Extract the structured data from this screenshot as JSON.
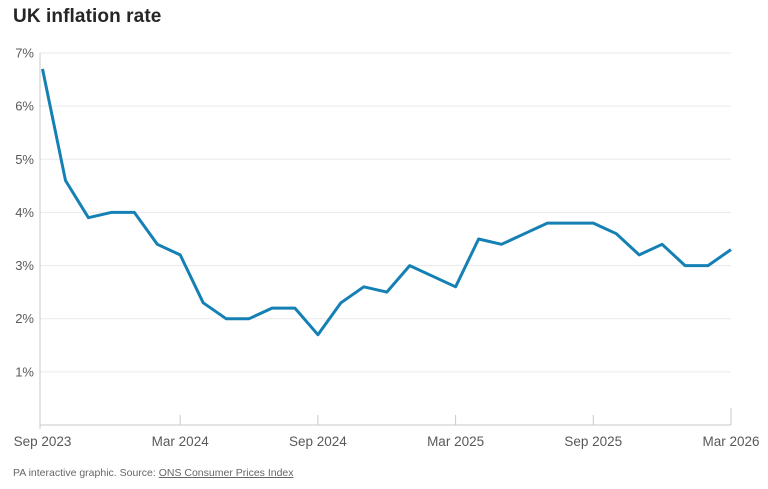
{
  "title": "UK inflation rate",
  "footer": {
    "prefix": "PA interactive graphic. Source: ",
    "link": "ONS Consumer Prices Index"
  },
  "chart_data": {
    "type": "line",
    "title": "UK inflation rate",
    "x": [
      "Sep 2023",
      "Oct 2023",
      "Nov 2023",
      "Dec 2023",
      "Jan 2024",
      "Feb 2024",
      "Mar 2024",
      "Apr 2024",
      "May 2024",
      "Jun 2024",
      "Jul 2024",
      "Aug 2024",
      "Sep 2024",
      "Oct 2024",
      "Nov 2024",
      "Dec 2024",
      "Jan 2025",
      "Feb 2025",
      "Mar 2025",
      "Apr 2025",
      "May 2025",
      "Jun 2025",
      "Jul 2025",
      "Aug 2025",
      "Sep 2025",
      "Oct 2025",
      "Nov 2025",
      "Dec 2025",
      "Jan 2026",
      "Feb 2026",
      "Mar 2026"
    ],
    "values": [
      6.7,
      4.6,
      3.9,
      4.0,
      4.0,
      3.4,
      3.2,
      2.3,
      2.0,
      2.0,
      2.2,
      2.2,
      1.7,
      2.3,
      2.6,
      2.5,
      3.0,
      2.8,
      2.6,
      3.5,
      3.4,
      3.6,
      3.8,
      3.8,
      3.8,
      3.6,
      3.2,
      3.4,
      3.0,
      3.0,
      3.3
    ],
    "xlabel": "",
    "ylabel": "",
    "ylim": [
      0,
      7
    ],
    "y_ticks": [
      1,
      2,
      3,
      4,
      5,
      6,
      7
    ],
    "y_tick_suffix": "%",
    "x_tick_labels": [
      "Sep 2023",
      "Mar 2024",
      "Sep 2024",
      "Mar 2025",
      "Sep 2025",
      "Mar 2026"
    ],
    "x_tick_indices": [
      0,
      6,
      12,
      18,
      24,
      30
    ],
    "grid": "horizontal",
    "legend": "none",
    "colors": {
      "line": "#1480b4",
      "grid": "#eaeaea",
      "axis": "#c9c9c9",
      "tick_text": "#595959",
      "title_text": "#262626",
      "footer_text": "#666666"
    }
  }
}
